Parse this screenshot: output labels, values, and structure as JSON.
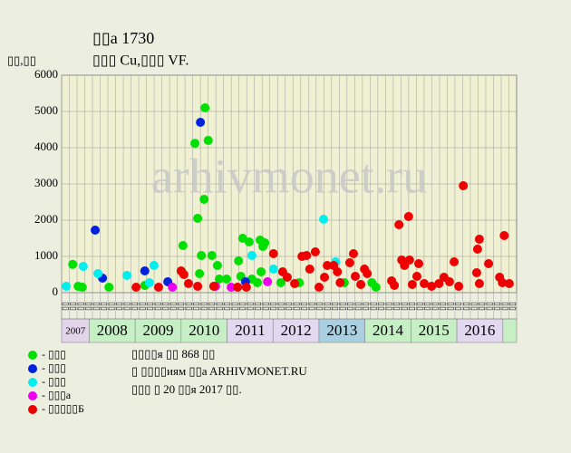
{
  "chart_data": {
    "type": "scatter",
    "title": "▯▯a 1730",
    "subtitle": "▯▯▯ Cu,▯▯▯ VF.",
    "y_label": "▯▯,▯▯",
    "watermark": "arhivmonet.ru",
    "xlim": [
      2007.4,
      2017.3
    ],
    "ylim": [
      0,
      6000
    ],
    "yticks": [
      0,
      1000,
      2000,
      3000,
      4000,
      5000,
      6000
    ],
    "grid": true,
    "year_bands": [
      {
        "label": "2007",
        "start": 2007.4,
        "end": 2008,
        "color": "#e2d4ea"
      },
      {
        "label": "2008",
        "start": 2008,
        "end": 2009,
        "color": "#c6efc6"
      },
      {
        "label": "2009",
        "start": 2009,
        "end": 2010,
        "color": "#c6efc6"
      },
      {
        "label": "2010",
        "start": 2010,
        "end": 2011,
        "color": "#c6efc6"
      },
      {
        "label": "2011",
        "start": 2011,
        "end": 2012,
        "color": "#e2d8f0"
      },
      {
        "label": "2012",
        "start": 2012,
        "end": 2013,
        "color": "#e2d8f0"
      },
      {
        "label": "2013",
        "start": 2013,
        "end": 2014,
        "color": "#a9cfe0"
      },
      {
        "label": "2014",
        "start": 2014,
        "end": 2015,
        "color": "#c6efc6"
      },
      {
        "label": "2015",
        "start": 2015,
        "end": 2016,
        "color": "#c6efc6"
      },
      {
        "label": "2016",
        "start": 2016,
        "end": 2017,
        "color": "#e2d8f0"
      },
      {
        "label": null,
        "start": 2017,
        "end": 2017.3,
        "color": "#c6efc6"
      }
    ],
    "month_labels": [
      "▯▯",
      "▯▯",
      "▯▯",
      "▯▯",
      "▯▯",
      "▯▯",
      "▯▯",
      "▯▯",
      "▯▯",
      "▯▯",
      "▯▯",
      "▯▯",
      "▯▯",
      "▯▯",
      "▯▯",
      "▯▯",
      "▯▯",
      "▯▯",
      "▯▯",
      "▯▯",
      "▯▯",
      "▯▯",
      "▯▯",
      "▯▯",
      "▯▯",
      "▯▯",
      "▯▯",
      "▯▯",
      "▯▯",
      "▯▯",
      "▯▯",
      "▯▯",
      "▯▯",
      "▯▯",
      "▯▯",
      "▯▯",
      "▯▯",
      "▯▯",
      "▯▯",
      "▯▯",
      "▯▯",
      "▯▯",
      "▯▯",
      "▯▯",
      "▯▯",
      "▯▯",
      "▯▯",
      "▯▯",
      "▯▯",
      "▯▯",
      "▯▯",
      "▯▯",
      "▯▯",
      "▯▯",
      "▯▯",
      "▯▯",
      "▯▯",
      "▯▯",
      "▯▯"
    ],
    "series": [
      {
        "name": "- ▯▯▯",
        "color": "#00e000",
        "x": [
          2007.64,
          2007.76,
          2007.85,
          2008.43,
          2009.21,
          2010.04,
          2010.02,
          2010.3,
          2010.36,
          2010.4,
          2010.44,
          2010.5,
          2010.52,
          2010.59,
          2010.67,
          2010.79,
          2010.83,
          2010.99,
          2011.25,
          2011.3,
          2011.34,
          2011.48,
          2011.54,
          2011.66,
          2011.72,
          2011.78,
          2011.82,
          2011.74,
          2012.17,
          2012.57,
          2013.55,
          2014.15,
          2014.24
        ],
        "values": [
          780,
          175,
          150,
          150,
          200,
          1300,
          575,
          4120,
          2050,
          525,
          1025,
          2575,
          5100,
          4200,
          1025,
          750,
          375,
          375,
          875,
          450,
          1500,
          1400,
          375,
          275,
          1450,
          1275,
          1375,
          575,
          275,
          275,
          275,
          275,
          150
        ]
      },
      {
        "name": "- ▯▯▯",
        "color": "#0022dd",
        "x": [
          2008.13,
          2008.29,
          2009.21,
          2009.71,
          2010.42,
          2011.4
        ],
        "values": [
          1725,
          400,
          600,
          300,
          4700,
          300
        ]
      },
      {
        "name": "- ▯▯▯",
        "color": "#00eeee",
        "x": [
          2007.5,
          2007.87,
          2008.19,
          2008.82,
          2009.41,
          2009.31,
          2012.01,
          2013.1,
          2013.36,
          2011.54
        ],
        "values": [
          175,
          725,
          525,
          475,
          750,
          275,
          650,
          2025,
          850,
          1025
        ]
      },
      {
        "name": "- ▯▯▯a",
        "color": "#ee00ee",
        "x": [
          2009.81,
          2010.75,
          2011.09,
          2011.88
        ],
        "values": [
          150,
          175,
          150,
          300
        ]
      },
      {
        "name": "- ▯▯▯▯▯Б",
        "color": "#ee0000",
        "x": [
          2009.02,
          2009.51,
          2010.0,
          2010.06,
          2010.16,
          2010.36,
          2010.71,
          2011.23,
          2011.42,
          2012.01,
          2012.21,
          2012.31,
          2012.47,
          2012.63,
          2012.73,
          2012.8,
          2012.92,
          2013.0,
          2013.12,
          2013.18,
          2013.32,
          2013.4,
          2013.46,
          2013.67,
          2013.75,
          2013.79,
          2013.91,
          2013.99,
          2014.05,
          2014.58,
          2014.64,
          2014.74,
          2014.8,
          2014.86,
          2014.95,
          2014.97,
          2015.03,
          2015.13,
          2015.17,
          2015.29,
          2015.45,
          2015.61,
          2015.72,
          2015.84,
          2015.94,
          2016.04,
          2016.14,
          2016.43,
          2016.45,
          2016.49,
          2016.49,
          2016.69,
          2016.93,
          2016.99,
          2017.03,
          2017.14
        ],
        "values": [
          150,
          150,
          600,
          500,
          250,
          175,
          175,
          150,
          150,
          1075,
          575,
          425,
          250,
          1000,
          1025,
          650,
          1125,
          150,
          425,
          750,
          750,
          575,
          275,
          825,
          1075,
          450,
          225,
          650,
          525,
          325,
          200,
          1875,
          900,
          750,
          2100,
          900,
          225,
          450,
          800,
          250,
          175,
          250,
          425,
          300,
          850,
          175,
          2950,
          550,
          1200,
          1475,
          250,
          800,
          425,
          275,
          1575,
          250
        ]
      }
    ],
    "footer": [
      "▯▯▯▯я ▯▯ 868 ▯▯",
      "▯ ▯▯▯▯иям ▯▯a ARHIVMONET.RU",
      "▯▯▯ ▯ 20 ▯▯я 2017 ▯▯."
    ]
  }
}
